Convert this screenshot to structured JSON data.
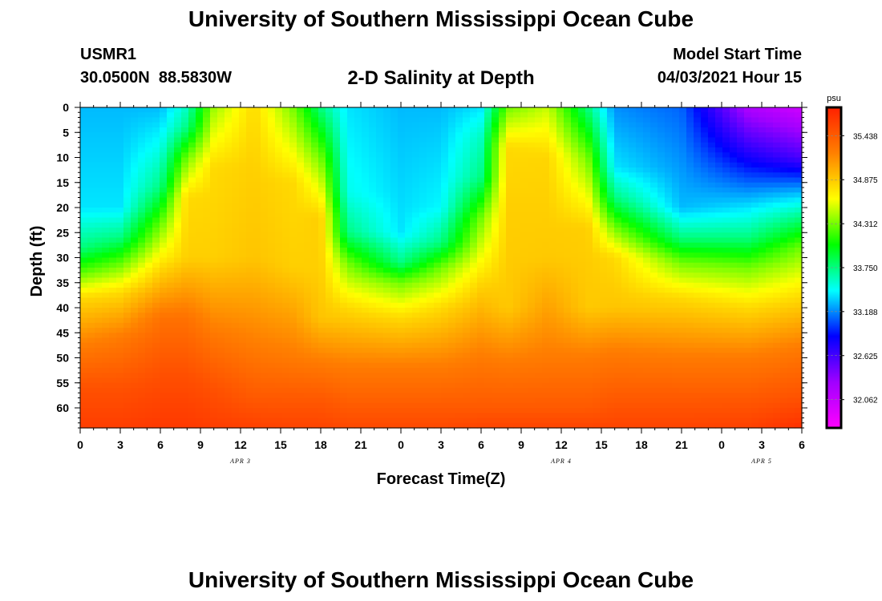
{
  "header": {
    "title": "University of Southern Mississippi Ocean Cube",
    "station_name": "USMR1",
    "station_coords": "30.0500N  88.5830W",
    "chart_title": "2-D Salinity at Depth",
    "start_label": "Model Start Time",
    "start_value": "04/03/2021 Hour 15"
  },
  "footer": {
    "title": "University of Southern Mississippi Ocean Cube"
  },
  "chart_data": {
    "type": "heatmap",
    "title": "2-D Salinity at Depth",
    "xlabel": "Forecast Time(Z)",
    "ylabel": "Depth (ft)",
    "x_ticks": [
      "0",
      "3",
      "6",
      "9",
      "12",
      "15",
      "18",
      "21",
      "0",
      "3",
      "6",
      "9",
      "12",
      "15",
      "18",
      "21",
      "0",
      "3",
      "6"
    ],
    "x_range_hours": [
      0,
      54
    ],
    "day_labels": [
      {
        "label": "APR 3",
        "hour": 12
      },
      {
        "label": "APR 4",
        "hour": 36
      },
      {
        "label": "APR 5",
        "hour": 51
      }
    ],
    "y_ticks": [
      0,
      5,
      10,
      15,
      20,
      25,
      30,
      35,
      40,
      45,
      50,
      55,
      60
    ],
    "y_range_ft": [
      0,
      64
    ],
    "y_inverted": true,
    "colorbar": {
      "unit": "psu",
      "min": 31.7,
      "max": 35.8,
      "tick_values": [
        "35.438",
        "34.875",
        "34.312",
        "33.750",
        "33.188",
        "32.625",
        "32.062"
      ],
      "colors_low_to_high": [
        "#ff00ff",
        "#a000ff",
        "#0000ff",
        "#00ffff",
        "#00ff00",
        "#ffff00",
        "#ff8000",
        "#ff2000"
      ]
    },
    "salinity_profiles": [
      {
        "hour": 0,
        "depths": [
          0,
          20,
          28,
          33,
          38,
          48,
          56,
          64
        ],
        "values": [
          33.3,
          33.4,
          33.75,
          34.25,
          34.8,
          35.25,
          35.5,
          35.62
        ]
      },
      {
        "hour": 3,
        "depths": [
          0,
          20,
          26,
          31,
          37,
          46,
          56,
          64
        ],
        "values": [
          33.3,
          33.4,
          33.75,
          34.25,
          34.8,
          35.25,
          35.5,
          35.62
        ]
      },
      {
        "hour": 6,
        "depths": [
          0,
          8,
          16,
          23,
          32,
          42,
          54,
          64
        ],
        "values": [
          33.3,
          33.5,
          33.75,
          34.25,
          34.8,
          35.3,
          35.52,
          35.65
        ]
      },
      {
        "hour": 8,
        "depths": [
          0,
          4,
          10,
          18,
          30,
          42,
          54,
          64
        ],
        "values": [
          33.6,
          33.75,
          34.3,
          34.8,
          34.85,
          35.3,
          35.52,
          35.65
        ]
      },
      {
        "hour": 10,
        "depths": [
          0,
          12,
          30,
          46,
          56,
          64
        ],
        "values": [
          34.4,
          34.8,
          34.85,
          35.28,
          35.5,
          35.62
        ]
      },
      {
        "hour": 13,
        "depths": [
          0,
          12,
          30,
          48,
          58,
          64
        ],
        "values": [
          34.8,
          34.85,
          34.9,
          35.25,
          35.45,
          35.6
        ]
      },
      {
        "hour": 16,
        "depths": [
          0,
          15,
          32,
          50,
          58,
          64
        ],
        "values": [
          34.3,
          34.8,
          34.85,
          35.25,
          35.45,
          35.58
        ]
      },
      {
        "hour": 18,
        "depths": [
          0,
          10,
          22,
          32,
          42,
          51,
          58,
          64
        ],
        "values": [
          33.75,
          34.3,
          34.85,
          34.85,
          34.9,
          35.25,
          35.45,
          35.58
        ]
      },
      {
        "hour": 20,
        "depths": [
          0,
          17,
          25,
          31,
          40,
          52,
          60,
          64
        ],
        "values": [
          33.4,
          33.5,
          33.75,
          34.3,
          34.8,
          35.25,
          35.45,
          35.55
        ]
      },
      {
        "hour": 24,
        "depths": [
          0,
          25,
          31,
          35,
          42,
          52,
          60,
          64
        ],
        "values": [
          33.3,
          33.4,
          33.75,
          34.3,
          34.8,
          35.25,
          35.45,
          35.55
        ]
      },
      {
        "hour": 27,
        "depths": [
          0,
          20,
          27,
          32,
          40,
          52,
          60,
          64
        ],
        "values": [
          33.3,
          33.45,
          33.75,
          34.3,
          34.8,
          35.25,
          35.45,
          35.55
        ]
      },
      {
        "hour": 30,
        "depths": [
          0,
          6,
          14,
          22,
          36,
          50,
          60,
          64
        ],
        "values": [
          33.4,
          33.6,
          33.75,
          34.3,
          34.85,
          35.25,
          35.45,
          35.58
        ]
      },
      {
        "hour": 32,
        "depths": [
          0,
          8,
          20,
          40,
          51,
          60,
          64
        ],
        "values": [
          34.3,
          34.8,
          34.85,
          34.88,
          35.25,
          35.45,
          35.58
        ]
      },
      {
        "hour": 35,
        "depths": [
          0,
          10,
          30,
          50,
          60,
          64
        ],
        "values": [
          34.5,
          34.82,
          34.88,
          35.25,
          35.45,
          35.58
        ]
      },
      {
        "hour": 38,
        "depths": [
          0,
          10,
          24,
          40,
          50,
          60,
          64
        ],
        "values": [
          33.75,
          34.3,
          34.85,
          34.88,
          35.25,
          35.45,
          35.58
        ]
      },
      {
        "hour": 40,
        "depths": [
          0,
          12,
          18,
          24,
          30,
          40,
          49,
          58,
          64
        ],
        "values": [
          33.2,
          33.4,
          33.75,
          34.3,
          34.8,
          34.9,
          35.25,
          35.45,
          35.58
        ]
      },
      {
        "hour": 45,
        "depths": [
          0,
          20,
          26,
          31,
          38,
          50,
          58,
          64
        ],
        "values": [
          33.1,
          33.3,
          33.75,
          34.3,
          34.8,
          35.25,
          35.45,
          35.58
        ]
      },
      {
        "hour": 50,
        "depths": [
          0,
          10,
          20,
          26,
          32,
          40,
          50,
          58,
          64
        ],
        "values": [
          32.2,
          32.8,
          33.4,
          33.75,
          34.3,
          34.8,
          35.25,
          35.45,
          35.6
        ]
      },
      {
        "hour": 54,
        "depths": [
          0,
          10,
          16,
          22,
          28,
          38,
          48,
          58,
          64
        ],
        "values": [
          32.0,
          32.6,
          33.2,
          33.75,
          34.3,
          34.8,
          35.25,
          35.5,
          35.7
        ]
      }
    ]
  }
}
